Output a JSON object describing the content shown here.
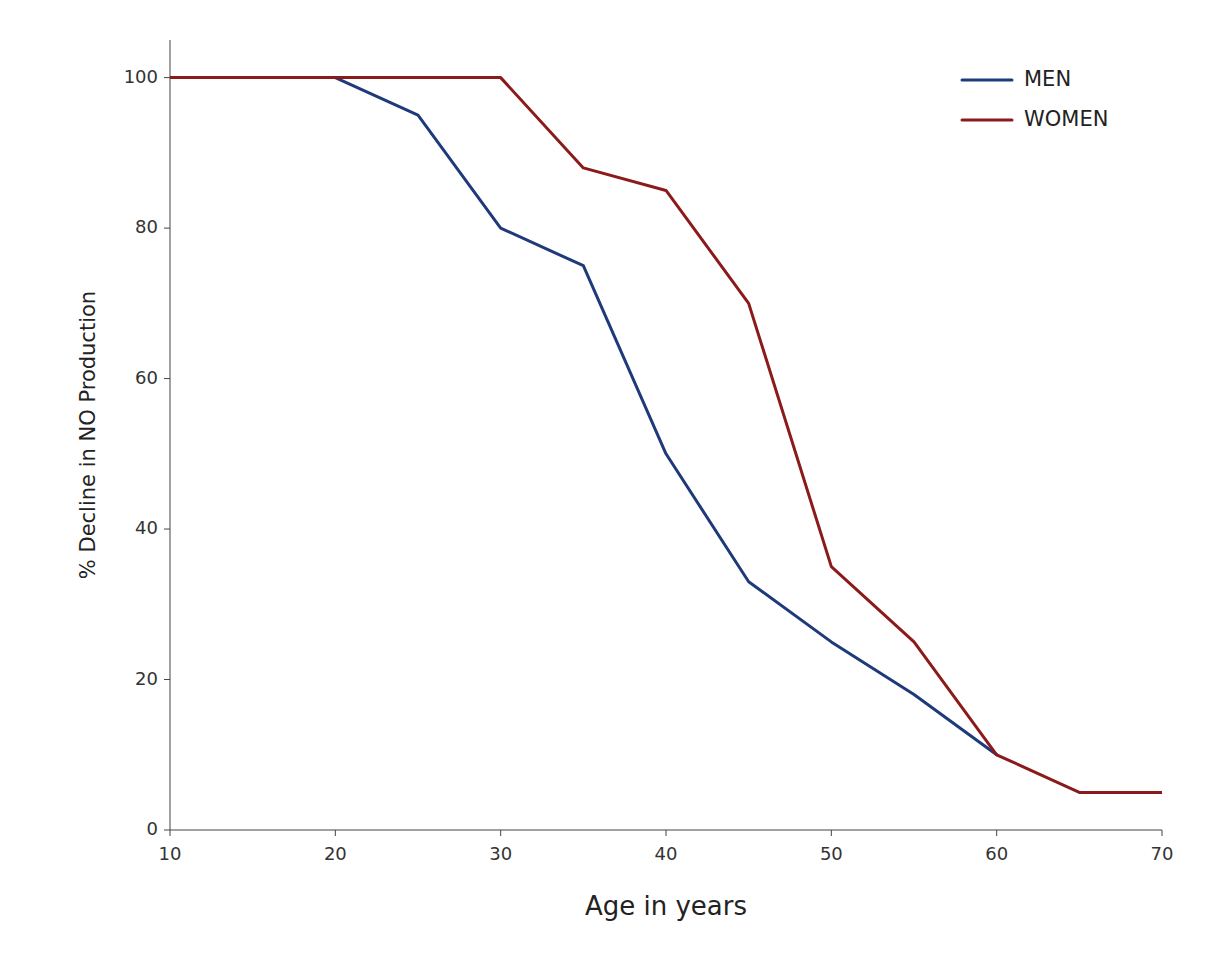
{
  "chart_data": {
    "type": "line",
    "xlabel": "Age in years",
    "ylabel": "% Decline in NO Production",
    "series": [
      {
        "name": "MEN",
        "color": "#1f3a7a",
        "x": [
          10,
          20,
          25,
          30,
          35,
          40,
          45,
          50,
          55,
          60
        ],
        "values": [
          100,
          100,
          95,
          80,
          75,
          50,
          33,
          25,
          18,
          10
        ]
      },
      {
        "name": "WOMEN",
        "color": "#8b1a1a",
        "x": [
          10,
          20,
          25,
          30,
          35,
          40,
          45,
          50,
          55,
          60,
          65,
          70
        ],
        "values": [
          100,
          100,
          100,
          100,
          88,
          85,
          70,
          35,
          25,
          10,
          5,
          5
        ]
      }
    ],
    "xlim": [
      10,
      70
    ],
    "ylim": [
      0,
      105
    ],
    "xticks": [
      10,
      20,
      30,
      40,
      50,
      60,
      70
    ],
    "yticks": [
      0,
      20,
      40,
      60,
      80,
      100
    ],
    "grid": false,
    "legend": "upper right"
  }
}
